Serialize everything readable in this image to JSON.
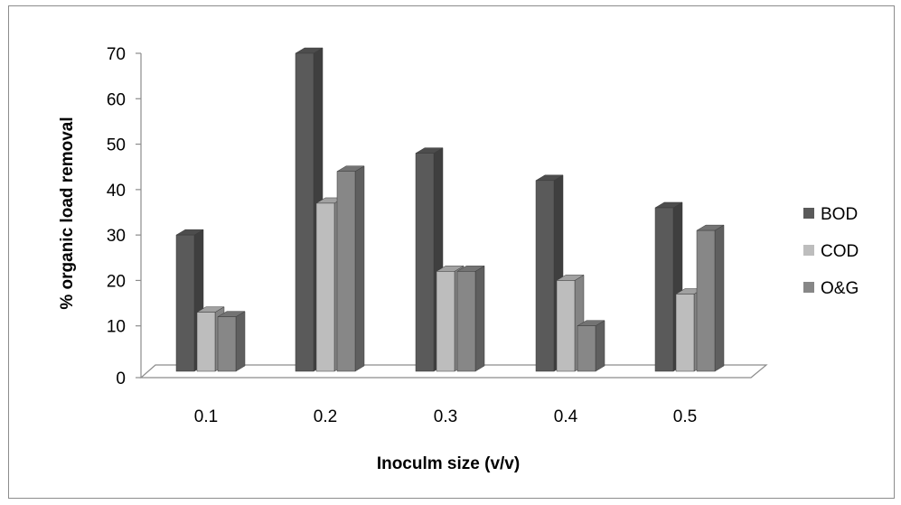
{
  "chart_data": {
    "type": "bar",
    "title": "",
    "xlabel": "Inoculm size (v/v)",
    "ylabel": "% organic load removal",
    "categories": [
      "0.1",
      "0.2",
      "0.3",
      "0.4",
      "0.5"
    ],
    "series": [
      {
        "name": "BOD",
        "values": [
          30,
          70,
          48,
          42,
          36
        ],
        "color": "#5a5a5a"
      },
      {
        "name": "COD",
        "values": [
          13,
          37,
          22,
          20,
          17
        ],
        "color": "#bdbdbd"
      },
      {
        "name": "O&G",
        "values": [
          12,
          44,
          22,
          10,
          31
        ],
        "color": "#878787"
      }
    ],
    "ylim": [
      0,
      70
    ],
    "yticks": [
      "0",
      "10",
      "20",
      "30",
      "40",
      "50",
      "60",
      "70"
    ],
    "grid": false,
    "legend_position": "right",
    "style": "3d-clustered-column"
  }
}
